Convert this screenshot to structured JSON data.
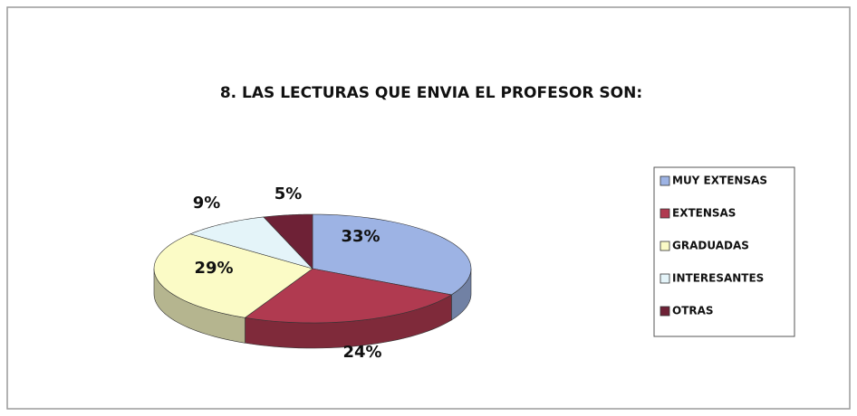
{
  "chart_data": {
    "type": "pie",
    "title": "8. LAS LECTURAS QUE ENVIA EL PROFESOR SON:",
    "categories": [
      "MUY EXTENSAS",
      "EXTENSAS",
      "GRADUADAS",
      "INTERESANTES",
      "OTRAS"
    ],
    "values": [
      33,
      24,
      29,
      9,
      5
    ],
    "value_labels": [
      "33%",
      "24%",
      "29%",
      "9%",
      "5%"
    ],
    "colors": [
      "#9db3e4",
      "#b03a50",
      "#fbfbc6",
      "#e4f4f9",
      "#6e2136"
    ],
    "legend": "right"
  }
}
